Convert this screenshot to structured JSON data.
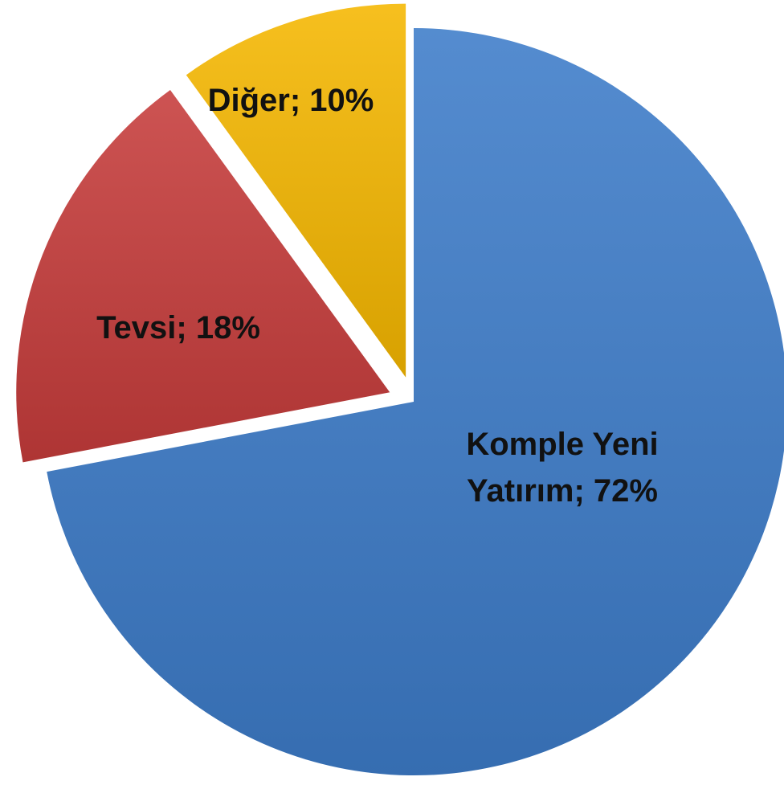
{
  "chart_data": {
    "type": "pie",
    "values": [
      72,
      18,
      10
    ],
    "value_labels": [
      "Komple Yeni Yatırım; 72%",
      "Tevsi; 18%",
      "Diğer; 10%"
    ],
    "colors": [
      "#3d7cc9",
      "#c63c3b",
      "#f5b700"
    ]
  }
}
